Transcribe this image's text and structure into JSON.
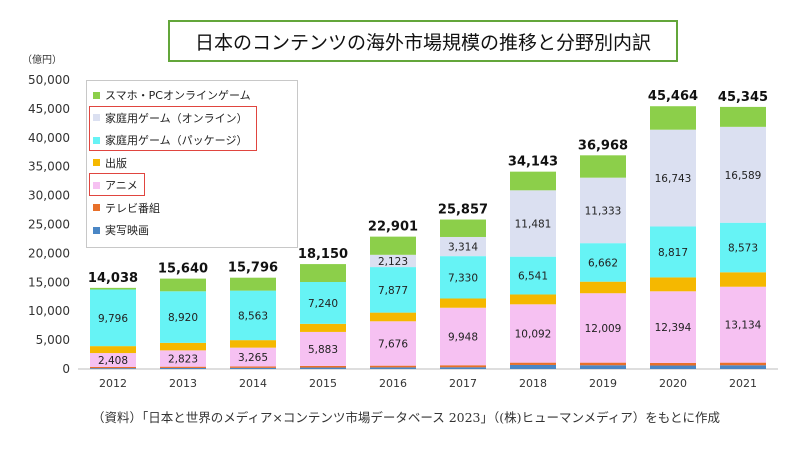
{
  "title": "日本のコンテンツの海外市場規模の推移と分野別内訳",
  "source": "（資料）「日本と世界のメディア×コンテンツ市場データベース 2023」（(株)ヒューマンメディア）をもとに作成",
  "chart_data": {
    "type": "bar",
    "stacked": true,
    "unit": "（億円）",
    "ylim": [
      0,
      50000
    ],
    "yticks": [
      "0",
      "5,000",
      "10,000",
      "15,000",
      "20,000",
      "25,000",
      "30,000",
      "35,000",
      "40,000",
      "45,000",
      "50,000"
    ],
    "categories": [
      "2012",
      "2013",
      "2014",
      "2015",
      "2016",
      "2017",
      "2018",
      "2019",
      "2020",
      "2021"
    ],
    "totals": [
      14038,
      15640,
      15796,
      18150,
      22901,
      25857,
      34143,
      36968,
      45464,
      45345
    ],
    "total_labels": [
      "14,038",
      "15,640",
      "15,796",
      "18,150",
      "22,901",
      "25,857",
      "34,143",
      "36,968",
      "45,464",
      "45,345"
    ],
    "series": [
      {
        "name": "実写映画",
        "color": "#4a86c5",
        "values": [
          150,
          180,
          200,
          250,
          280,
          300,
          700,
          650,
          600,
          650
        ]
      },
      {
        "name": "テレビ番組",
        "color": "#e8702a",
        "values": [
          200,
          220,
          230,
          280,
          300,
          350,
          400,
          450,
          450,
          450
        ]
      },
      {
        "name": "アニメ",
        "color": "#f6c1f2",
        "values": [
          2408,
          2823,
          3265,
          5883,
          7676,
          9948,
          10092,
          12009,
          12394,
          13134
        ],
        "labels": [
          "2,408",
          "2,823",
          "3,265",
          "5,883",
          "7,676",
          "9,948",
          "10,092",
          "12,009",
          "12,394",
          "13,134"
        ]
      },
      {
        "name": "出版",
        "color": "#f5b800",
        "values": [
          1200,
          1300,
          1300,
          1400,
          1500,
          1600,
          1700,
          2000,
          2400,
          2500
        ]
      },
      {
        "name": "家庭用ゲーム（パッケージ）",
        "color": "#66f3f5",
        "values": [
          9796,
          8920,
          8563,
          7240,
          7877,
          7330,
          6541,
          6662,
          8817,
          8573
        ],
        "labels": [
          "9,796",
          "8,920",
          "8,563",
          "7,240",
          "7,877",
          "7,330",
          "6,541",
          "6,662",
          "8,817",
          "8,573"
        ]
      },
      {
        "name": "家庭用ゲーム（オンライン）",
        "color": "#dbe0f1",
        "values": [
          0,
          0,
          0,
          0,
          2123,
          3314,
          11481,
          11333,
          16743,
          16589
        ],
        "labels": [
          "",
          "",
          "",
          "",
          "2,123",
          "3,314",
          "11,481",
          "11,333",
          "16,743",
          "16,589"
        ]
      },
      {
        "name": "スマホ・PCオンラインゲーム",
        "color": "#8ccf4a",
        "values": [
          284,
          2197,
          2238,
          3097,
          3145,
          3015,
          3229,
          3864,
          4060,
          3449
        ]
      }
    ],
    "legend_order": [
      "スマホ・PCオンラインゲーム",
      "家庭用ゲーム（オンライン）",
      "家庭用ゲーム（パッケージ）",
      "出版",
      "アニメ",
      "テレビ番組",
      "実写映画"
    ],
    "legend_highlight": [
      "家庭用ゲーム（オンライン）",
      "家庭用ゲーム（パッケージ）",
      "アニメ"
    ],
    "legend_placement": "top-left",
    "grid": false
  }
}
